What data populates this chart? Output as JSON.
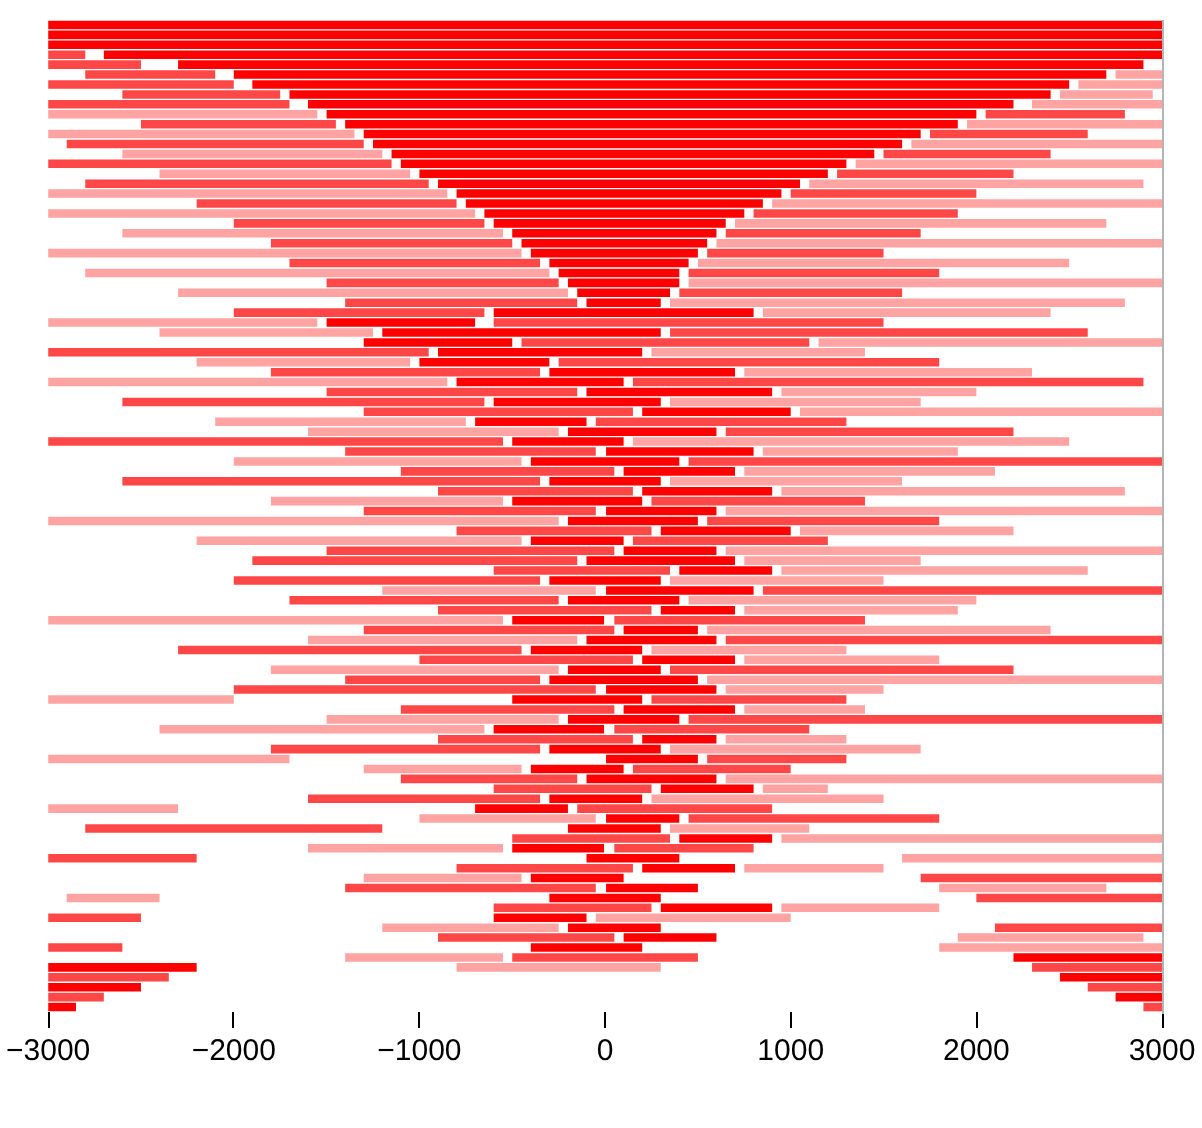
{
  "chart_data": {
    "type": "bar",
    "orientation": "horizontal",
    "categories": [
      null,
      null,
      null,
      null,
      null,
      null,
      null,
      null,
      null,
      null,
      null,
      null,
      null,
      null,
      null,
      null,
      null,
      null,
      null,
      null,
      null,
      null,
      null,
      null,
      null,
      null,
      null,
      null,
      null,
      null,
      null,
      null,
      null,
      null,
      null,
      null,
      null,
      null,
      null,
      null,
      null,
      null,
      null,
      null,
      null,
      null,
      null,
      null,
      null,
      null,
      null,
      null,
      null,
      null,
      null,
      null,
      null,
      null,
      null,
      null,
      null,
      null,
      null,
      null,
      null,
      null,
      null,
      null,
      null,
      null,
      null,
      null,
      null,
      null,
      null,
      null,
      null,
      null,
      null,
      null,
      null,
      null,
      null,
      null,
      null,
      null,
      null,
      null,
      null,
      null,
      null,
      null,
      null,
      null,
      null,
      null,
      null,
      null,
      null,
      null
    ],
    "series": [
      {
        "color": "#ff0000",
        "base": [
          -3000,
          -3000,
          -3000,
          -2700,
          -2300,
          -2000,
          -1900,
          -1700,
          -1600,
          -1500,
          -1400,
          -1300,
          -1250,
          -1150,
          -1100,
          -1000,
          -900,
          -800,
          -750,
          -650,
          -600,
          -500,
          -450,
          -400,
          -300,
          -250,
          -200,
          -150,
          -100,
          -600,
          -1500,
          -1200,
          -1300,
          -900,
          -1000,
          -300,
          -800,
          -100,
          -600,
          200,
          -700,
          -200,
          -500,
          0,
          -400,
          100,
          -300,
          200,
          -500,
          0,
          -200,
          300,
          -400,
          100,
          -100,
          400,
          -300,
          0,
          -200,
          300,
          -500,
          100,
          -100,
          -400,
          200,
          -200,
          -300,
          0,
          -500,
          100,
          -200,
          -600,
          200,
          -300,
          0,
          -400,
          -100,
          300,
          -300,
          -700,
          0,
          -200,
          400,
          -500,
          -100,
          200,
          -400,
          0,
          -300,
          300,
          -600,
          -200,
          100,
          -400,
          2200,
          -3000,
          2450,
          -3000,
          2750,
          -3000
        ],
        "values": [
          6000,
          6000,
          6000,
          5700,
          5200,
          4700,
          4400,
          4100,
          3800,
          3500,
          3300,
          3000,
          2850,
          2600,
          2400,
          2200,
          1950,
          1750,
          1600,
          1400,
          1250,
          1100,
          1000,
          900,
          750,
          650,
          600,
          500,
          400,
          1400,
          800,
          1500,
          800,
          1100,
          700,
          1000,
          900,
          1000,
          900,
          800,
          600,
          800,
          600,
          800,
          800,
          600,
          600,
          700,
          700,
          600,
          700,
          700,
          500,
          500,
          800,
          500,
          600,
          800,
          600,
          400,
          500,
          400,
          700,
          600,
          500,
          500,
          800,
          600,
          700,
          600,
          600,
          600,
          400,
          600,
          500,
          500,
          700,
          500,
          500,
          500,
          400,
          500,
          500,
          500,
          500,
          500,
          500,
          500,
          600,
          600,
          500,
          500,
          500,
          600,
          800,
          800,
          550,
          500,
          250,
          150
        ]
      },
      {
        "color": "#ff4747",
        "base": [
          null,
          null,
          null,
          -3000,
          -3000,
          -2800,
          -3000,
          -2600,
          -3000,
          2050,
          -2500,
          1750,
          -2900,
          1500,
          -3000,
          1250,
          -2800,
          1000,
          -2200,
          800,
          -2000,
          650,
          -1800,
          550,
          -1700,
          450,
          -1500,
          400,
          -1400,
          -2000,
          -600,
          350,
          -450,
          -3000,
          -250,
          -1800,
          150,
          -1500,
          -2600,
          -1300,
          -50,
          650,
          -3000,
          -1400,
          450,
          -1100,
          -2600,
          -900,
          250,
          -1300,
          550,
          -800,
          150,
          -1500,
          -1900,
          -600,
          -2000,
          850,
          -1700,
          -900,
          50,
          -1300,
          650,
          -2300,
          -1000,
          350,
          -1400,
          -2000,
          250,
          -1100,
          450,
          50,
          -900,
          -1800,
          550,
          150,
          -1100,
          -600,
          -1600,
          -150,
          450,
          -2800,
          -500,
          50,
          -3000,
          -800,
          1700,
          -1400,
          2000,
          -600,
          -3000,
          2100,
          -900,
          -3000,
          -500,
          2300,
          -3000,
          2600,
          -3000,
          2900
        ],
        "values": [
          null,
          null,
          null,
          200,
          500,
          700,
          1000,
          850,
          1300,
          750,
          1050,
          850,
          1600,
          900,
          1850,
          950,
          1850,
          1000,
          1400,
          1100,
          1350,
          1050,
          1300,
          950,
          1350,
          1350,
          1250,
          1200,
          1250,
          1350,
          2100,
          2250,
          1550,
          2050,
          2050,
          1450,
          2750,
          1350,
          1950,
          1450,
          1350,
          1550,
          2450,
          1350,
          2550,
          1150,
          2250,
          1050,
          1150,
          1250,
          1250,
          1050,
          1050,
          1550,
          1750,
          950,
          1650,
          2150,
          1450,
          1150,
          1350,
          1350,
          2350,
          1850,
          1150,
          1850,
          1050,
          1950,
          1050,
          1150,
          2550,
          1050,
          1050,
          1450,
          750,
          850,
          950,
          850,
          1250,
          1050,
          1350,
          1600,
          850,
          750,
          800,
          950,
          1300,
          1350,
          1000,
          850,
          500,
          900,
          950,
          400,
          1000,
          700,
          650,
          400,
          300,
          100
        ]
      },
      {
        "color": "#ffa3a3",
        "base": [
          null,
          null,
          null,
          null,
          null,
          2750,
          2550,
          2450,
          2300,
          -3000,
          1950,
          -3000,
          1650,
          -2600,
          1350,
          -2400,
          1100,
          -3000,
          900,
          -3000,
          700,
          -2600,
          600,
          -3000,
          500,
          -2800,
          450,
          -2300,
          350,
          850,
          -3000,
          -2400,
          1150,
          250,
          -2200,
          750,
          -3000,
          950,
          350,
          1050,
          -2100,
          -1600,
          150,
          850,
          -2000,
          750,
          350,
          950,
          -1800,
          650,
          -3000,
          1050,
          -2200,
          650,
          750,
          950,
          350,
          -1200,
          450,
          750,
          -3000,
          550,
          -1600,
          250,
          750,
          -1800,
          550,
          650,
          -3000,
          750,
          -1500,
          -2400,
          650,
          350,
          -3000,
          -1300,
          650,
          850,
          250,
          -3000,
          -1000,
          350,
          950,
          -1600,
          1600,
          750,
          -1300,
          1800,
          -2900,
          950,
          -50,
          -1200,
          1900,
          1800,
          -1400,
          -800,
          null,
          null,
          null,
          null
        ],
        "values": [
          null,
          null,
          null,
          null,
          null,
          250,
          450,
          500,
          700,
          1450,
          1050,
          1650,
          1350,
          1400,
          1650,
          1350,
          1800,
          2150,
          2100,
          2300,
          2000,
          2050,
          2400,
          2550,
          2000,
          2500,
          2550,
          2100,
          2450,
          1550,
          1450,
          1150,
          1850,
          1150,
          1150,
          1550,
          2150,
          1050,
          1350,
          1950,
          1350,
          1350,
          2350,
          1050,
          1550,
          1350,
          1250,
          1850,
          1250,
          2350,
          2750,
          1150,
          1750,
          2350,
          950,
          1650,
          1150,
          1150,
          1550,
          1150,
          2450,
          1850,
          1450,
          1050,
          1050,
          1550,
          2450,
          850,
          1000,
          650,
          1250,
          1750,
          650,
          1350,
          1300,
          850,
          2350,
          350,
          1250,
          700,
          950,
          750,
          2050,
          1050,
          1400,
          750,
          850,
          900,
          500,
          850,
          1050,
          950,
          1000,
          1200,
          850,
          1100,
          null,
          null,
          null,
          null
        ]
      }
    ],
    "xlim": [
      -3000,
      3000
    ],
    "xticks": [
      {
        "value": -3000,
        "label": "−3000"
      },
      {
        "value": -2000,
        "label": "−2000"
      },
      {
        "value": -1000,
        "label": "−1000"
      },
      0,
      1000,
      2000,
      3000
    ],
    "tick_labels": "x",
    "grid": false
  }
}
